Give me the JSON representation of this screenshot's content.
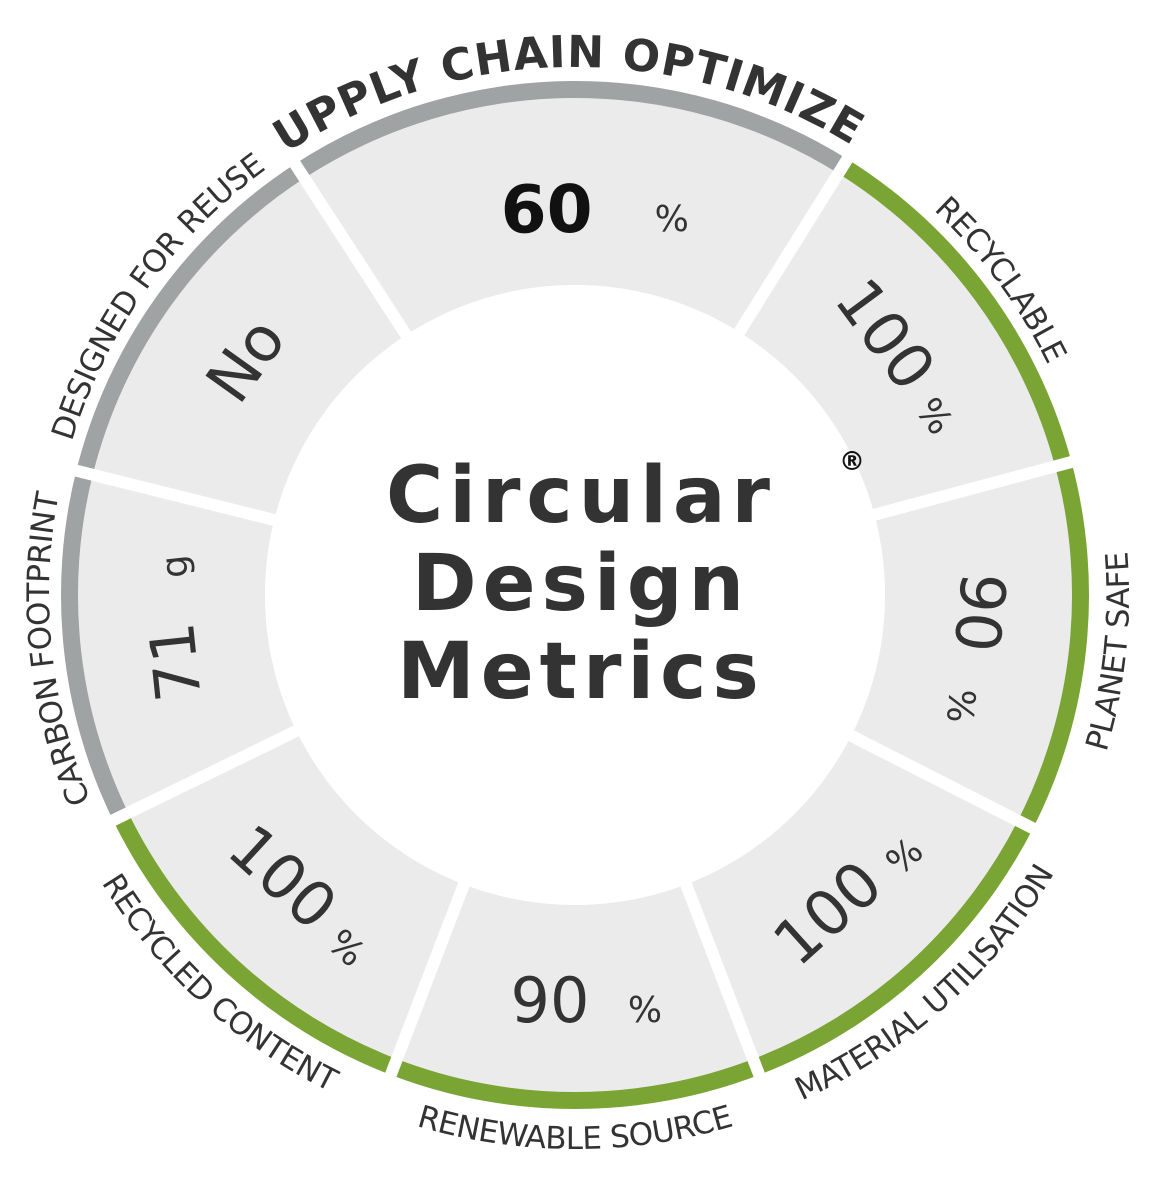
{
  "title": [
    "Circular",
    "Design",
    "Metrics"
  ],
  "mark": "®",
  "segments": [
    {
      "label": "SUPPLY CHAIN OPTIMIZED",
      "value": 60,
      "unit": "%",
      "color": "#a0a3a3"
    },
    {
      "label": "RECYCLABLE",
      "value": 100,
      "unit": "%",
      "color": "#7aa434"
    },
    {
      "label": "PLANET SAFE",
      "value": 90,
      "unit": "%",
      "color": "#7aa434"
    },
    {
      "label": "MATERIAL UTILISATION",
      "value": 100,
      "unit": "%",
      "color": "#7aa434"
    },
    {
      "label": "RENEWABLE SOURCE",
      "value": 90,
      "unit": "%",
      "color": "#7aa434"
    },
    {
      "label": "RECYCLED CONTENT",
      "value": 100,
      "unit": "%",
      "color": "#7aa434"
    },
    {
      "label": "CARBON FOOTPRINT",
      "value": 71,
      "unit": "g",
      "color": "#a0a3a3"
    },
    {
      "label": "DESIGNED FOR REUSE",
      "value": "No",
      "color": "#a0a3a3"
    }
  ]
}
